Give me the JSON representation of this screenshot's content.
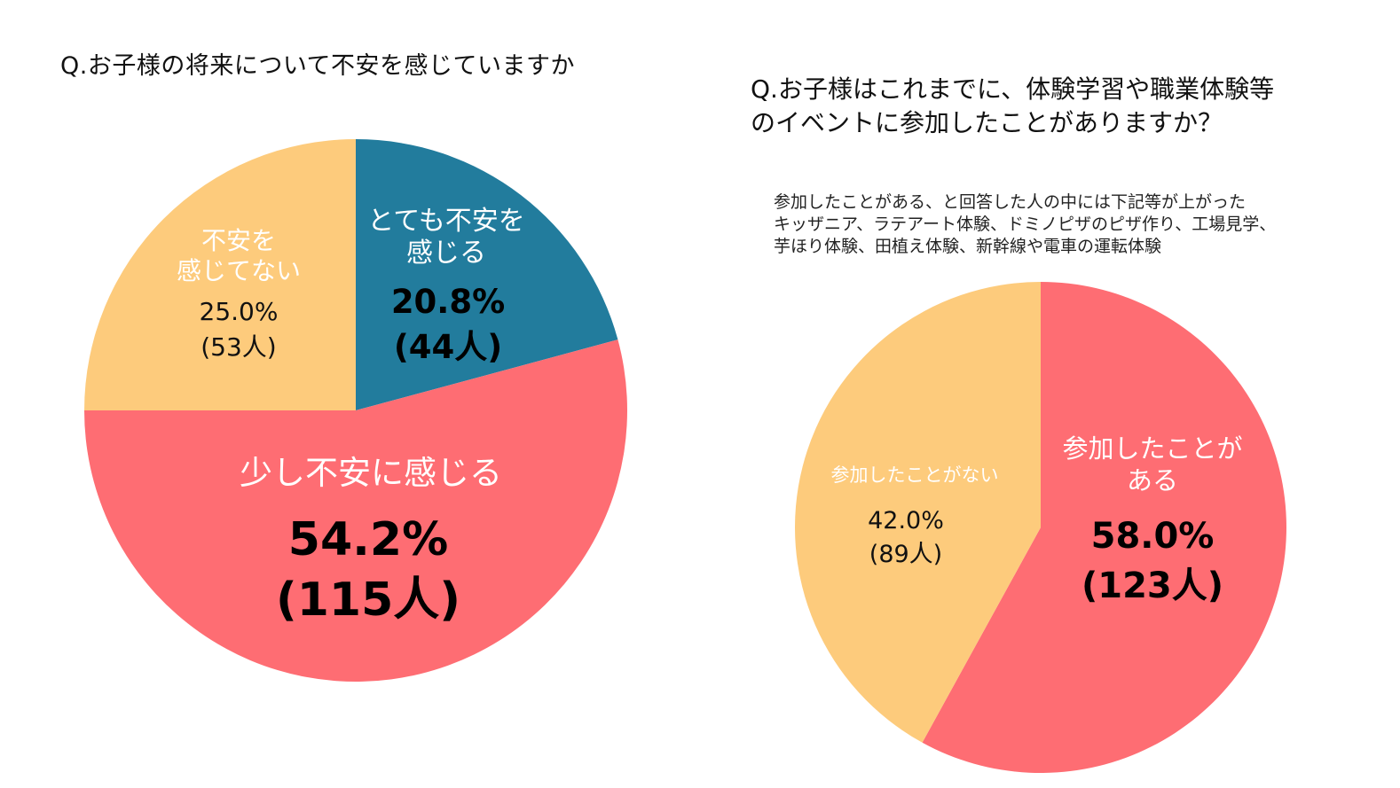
{
  "colors": {
    "very": "#227c9d",
    "little": "#fe6d73",
    "not": "#fdcb7c",
    "yes": "#fe6d73",
    "no": "#fdcb7c"
  },
  "chart_data": [
    {
      "type": "pie",
      "title": "Q.お子様の将来について不安を感じていますか",
      "slices": [
        {
          "label_lines": [
            "とても不安を",
            "感じる"
          ],
          "percent": 20.8,
          "count": 44,
          "pct_text": "20.8%",
          "count_text": "(44人)",
          "color": "#227c9d"
        },
        {
          "label_lines": [
            "少し不安に感じる"
          ],
          "percent": 54.2,
          "count": 115,
          "pct_text": "54.2%",
          "count_text": "(115人)",
          "color": "#fe6d73"
        },
        {
          "label_lines": [
            "不安を",
            "感じてない"
          ],
          "percent": 25.0,
          "count": 53,
          "pct_text": "25.0%",
          "count_text": "(53人)",
          "color": "#fdcb7c"
        }
      ]
    },
    {
      "type": "pie",
      "title_lines": [
        "Q.お子様はこれまでに、体験学習や職業体験等",
        "のイベントに参加したことがありますか？"
      ],
      "annotation_lines": [
        "参加したことがある、と回答した人の中には下記等が上がった",
        "キッザニア、ラテアート体験、ドミノピザのピザ作り、工場見学、",
        "芋ほり体験、田植え体験、新幹線や電車の運転体験"
      ],
      "slices": [
        {
          "label_lines": [
            "参加したことが",
            "ある"
          ],
          "percent": 58.0,
          "count": 123,
          "pct_text": "58.0%",
          "count_text": "(123人)",
          "color": "#fe6d73"
        },
        {
          "label_lines": [
            "参加したことがない"
          ],
          "percent": 42.0,
          "count": 89,
          "pct_text": "42.0%",
          "count_text": "(89人)",
          "color": "#fdcb7c"
        }
      ]
    }
  ]
}
